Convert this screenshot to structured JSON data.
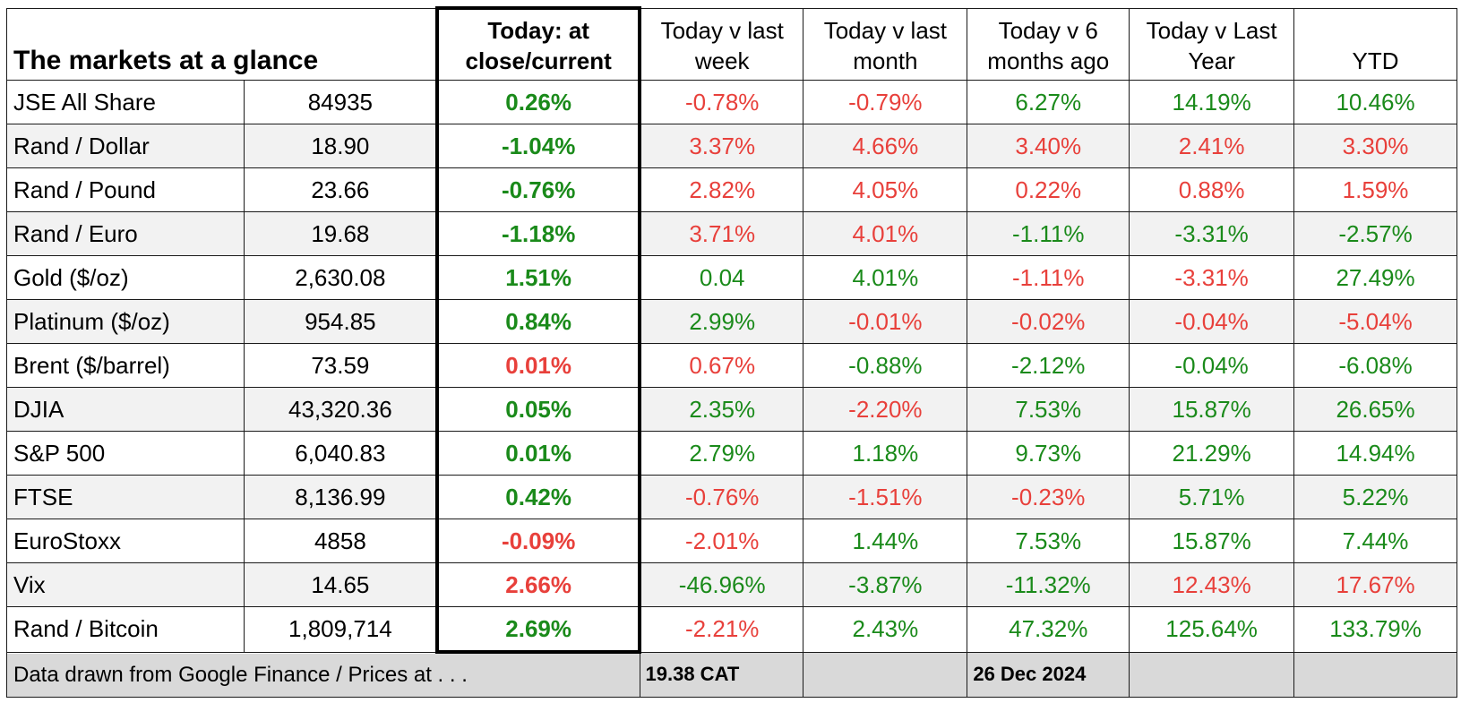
{
  "title": "The markets at a glance",
  "columns": [
    "Today: at close/current",
    "Today v last week",
    "Today v last month",
    "Today v 6 months ago",
    "Today v Last Year",
    "YTD"
  ],
  "rows": [
    {
      "name": "JSE All Share",
      "value": "84935",
      "today": "0.26%",
      "week": "-0.78%",
      "month": "-0.79%",
      "six_months": "6.27%",
      "year": "14.19%",
      "ytd": "10.46%"
    },
    {
      "name": "Rand / Dollar",
      "value": "18.90",
      "today": "-1.04%",
      "week": "3.37%",
      "month": "4.66%",
      "six_months": "3.40%",
      "year": "2.41%",
      "ytd": "3.30%"
    },
    {
      "name": "Rand / Pound",
      "value": "23.66",
      "today": "-0.76%",
      "week": "2.82%",
      "month": "4.05%",
      "six_months": "0.22%",
      "year": "0.88%",
      "ytd": "1.59%"
    },
    {
      "name": "Rand / Euro",
      "value": "19.68",
      "today": "-1.18%",
      "week": "3.71%",
      "month": "4.01%",
      "six_months": "-1.11%",
      "year": "-3.31%",
      "ytd": "-2.57%"
    },
    {
      "name": "Gold ($/oz)",
      "value": "2,630.08",
      "today": "1.51%",
      "week": "0.04",
      "month": "4.01%",
      "six_months": "-1.11%",
      "year": "-3.31%",
      "ytd": "27.49%"
    },
    {
      "name": "Platinum ($/oz)",
      "value": "954.85",
      "today": "0.84%",
      "week": "2.99%",
      "month": "-0.01%",
      "six_months": "-0.02%",
      "year": "-0.04%",
      "ytd": "-5.04%"
    },
    {
      "name": "Brent ($/barrel)",
      "value": "73.59",
      "today": "0.01%",
      "week": "0.67%",
      "month": "-0.88%",
      "six_months": "-2.12%",
      "year": "-0.04%",
      "ytd": "-6.08%"
    },
    {
      "name": "DJIA",
      "value": "43,320.36",
      "today": "0.05%",
      "week": "2.35%",
      "month": "-2.20%",
      "six_months": "7.53%",
      "year": "15.87%",
      "ytd": "26.65%"
    },
    {
      "name": "S&P 500",
      "value": "6,040.83",
      "today": "0.01%",
      "week": "2.79%",
      "month": "1.18%",
      "six_months": "9.73%",
      "year": "21.29%",
      "ytd": "14.94%"
    },
    {
      "name": "FTSE",
      "value": "8,136.99",
      "today": "0.42%",
      "week": "-0.76%",
      "month": "-1.51%",
      "six_months": "-0.23%",
      "year": "5.71%",
      "ytd": "5.22%"
    },
    {
      "name": "EuroStoxx",
      "value": "4858",
      "today": "-0.09%",
      "week": "-2.01%",
      "month": "1.44%",
      "six_months": "7.53%",
      "year": "15.87%",
      "ytd": "7.44%"
    },
    {
      "name": "Vix",
      "value": "14.65",
      "today": "2.66%",
      "week": "-46.96%",
      "month": "-3.87%",
      "six_months": "-11.32%",
      "year": "12.43%",
      "ytd": "17.67%"
    },
    {
      "name": "Rand / Bitcoin",
      "value": "1,809,714",
      "today": "2.69%",
      "week": "-2.21%",
      "month": "2.43%",
      "six_months": "47.32%",
      "year": "125.64%",
      "ytd": "133.79%"
    }
  ],
  "colors": {
    "today": [
      "g",
      "g",
      "g",
      "g",
      "g",
      "g",
      "r",
      "g",
      "g",
      "g",
      "r",
      "r",
      "g"
    ],
    "week": [
      "r",
      "r",
      "r",
      "r",
      "g",
      "g",
      "r",
      "g",
      "g",
      "r",
      "r",
      "g",
      "r"
    ],
    "month": [
      "r",
      "r",
      "r",
      "r",
      "g",
      "r",
      "g",
      "r",
      "g",
      "r",
      "g",
      "g",
      "g"
    ],
    "six_months": [
      "g",
      "r",
      "r",
      "g",
      "r",
      "r",
      "g",
      "g",
      "g",
      "r",
      "g",
      "g",
      "g"
    ],
    "year": [
      "g",
      "r",
      "r",
      "g",
      "r",
      "r",
      "g",
      "g",
      "g",
      "g",
      "g",
      "r",
      "g"
    ],
    "ytd": [
      "g",
      "r",
      "r",
      "g",
      "g",
      "r",
      "g",
      "g",
      "g",
      "g",
      "g",
      "r",
      "g"
    ]
  },
  "color_values": {
    "g": "#1a8a1a",
    "r": "#e8403b"
  },
  "footer": {
    "source": "Data drawn from Google Finance / Prices at . . .",
    "time": "19.38 CAT",
    "date": "26 Dec 2024"
  }
}
